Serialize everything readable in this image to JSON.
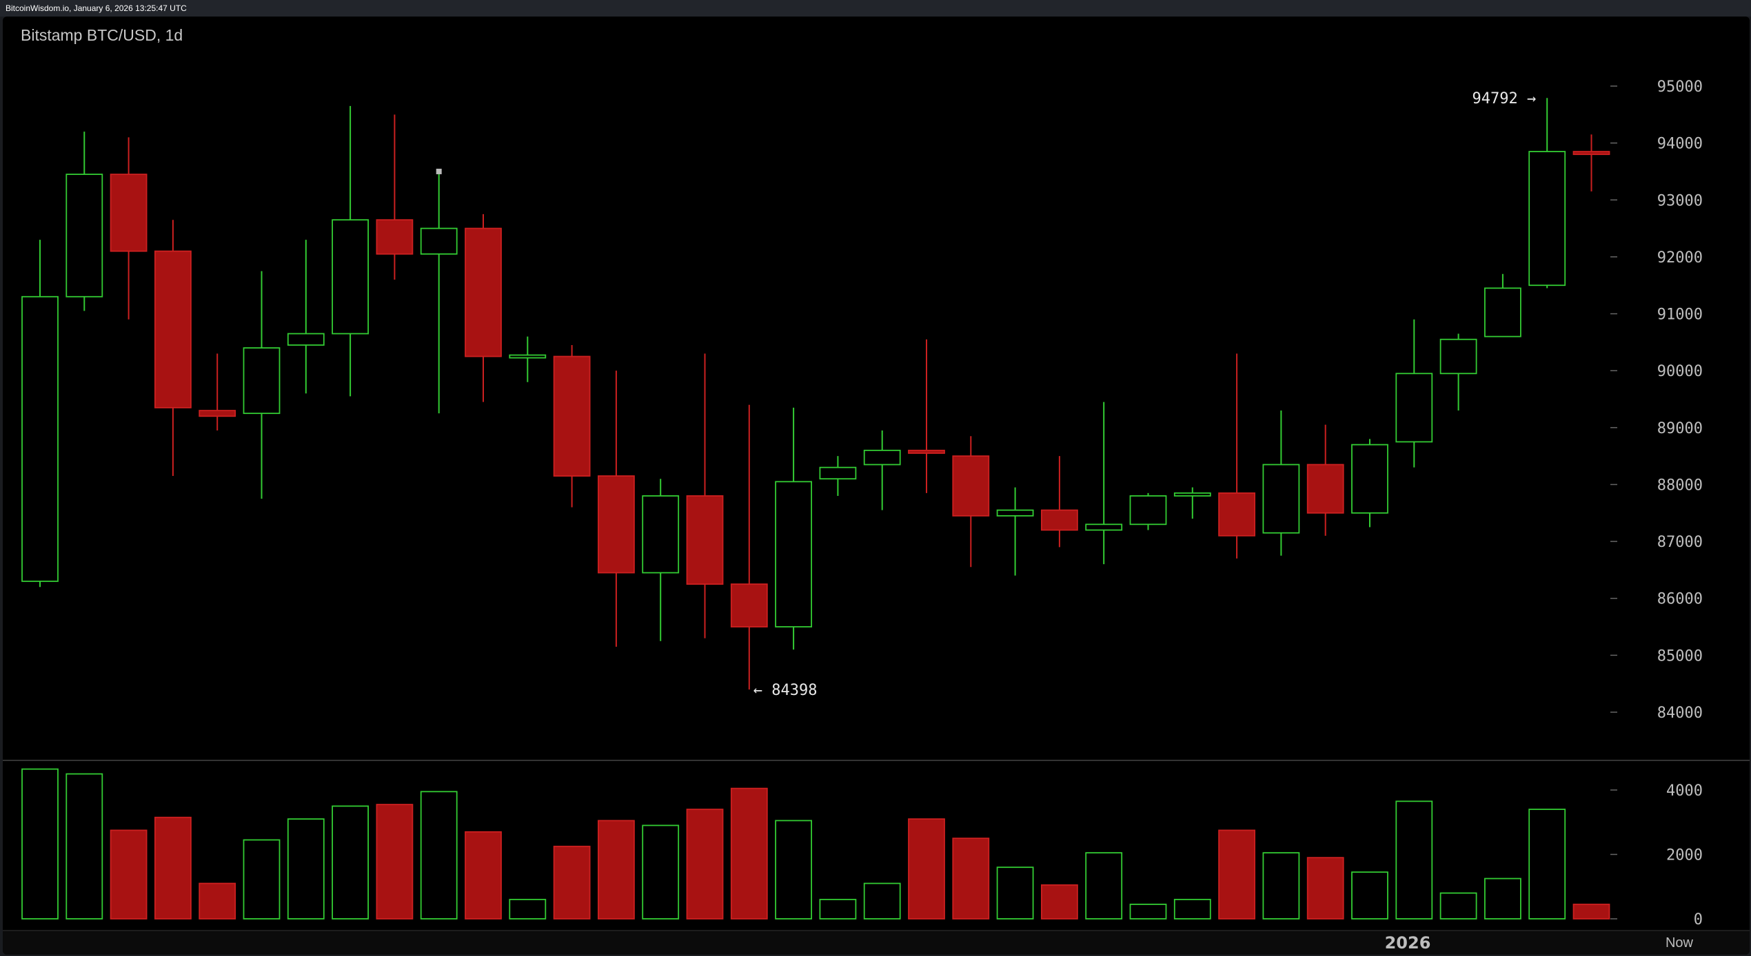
{
  "header": {
    "source_text": "BitcoinWisdom.io, January 6, 2026 13:25:47 UTC"
  },
  "chart": {
    "title": "Bitstamp BTC/USD, 1d"
  },
  "colors": {
    "up": "#33cc33",
    "down": "#cc2020",
    "down_fill": "#a81212",
    "text": "#bfbfbf"
  },
  "chart_data": [
    {
      "type": "candlestick",
      "title": "Bitstamp BTC/USD, 1d",
      "ylim": [
        83500,
        95500
      ],
      "y_ticks": [
        "84000",
        "85000",
        "86000",
        "87000",
        "88000",
        "89000",
        "90000",
        "91000",
        "92000",
        "93000",
        "94000",
        "95000"
      ],
      "annotations": {
        "high_label": "94792 →",
        "low_label": "← 84398"
      },
      "candles": [
        {
          "o": 86300,
          "h": 92300,
          "l": 86200,
          "c": 91300
        },
        {
          "o": 91300,
          "h": 94200,
          "l": 91050,
          "c": 93450
        },
        {
          "o": 93450,
          "h": 94100,
          "l": 90900,
          "c": 92100
        },
        {
          "o": 92100,
          "h": 92650,
          "l": 88150,
          "c": 89350
        },
        {
          "o": 89300,
          "h": 90300,
          "l": 88950,
          "c": 89200
        },
        {
          "o": 89250,
          "h": 91750,
          "l": 87750,
          "c": 90400
        },
        {
          "o": 90450,
          "h": 92300,
          "l": 89600,
          "c": 90650
        },
        {
          "o": 90650,
          "h": 94650,
          "l": 89550,
          "c": 92650
        },
        {
          "o": 92650,
          "h": 94500,
          "l": 91600,
          "c": 92050
        },
        {
          "o": 92050,
          "h": 93500,
          "l": 89250,
          "c": 92500
        },
        {
          "o": 92500,
          "h": 92750,
          "l": 89450,
          "c": 90250
        },
        {
          "o": 90250,
          "h": 90600,
          "l": 89800,
          "c": 90250
        },
        {
          "o": 90250,
          "h": 90450,
          "l": 87600,
          "c": 88150
        },
        {
          "o": 88150,
          "h": 90000,
          "l": 85150,
          "c": 86450
        },
        {
          "o": 86450,
          "h": 88100,
          "l": 85250,
          "c": 87800
        },
        {
          "o": 87800,
          "h": 90300,
          "l": 85300,
          "c": 86250
        },
        {
          "o": 86250,
          "h": 89400,
          "l": 84398,
          "c": 85500
        },
        {
          "o": 85500,
          "h": 89350,
          "l": 85100,
          "c": 88050
        },
        {
          "o": 88100,
          "h": 88500,
          "l": 87800,
          "c": 88300
        },
        {
          "o": 88350,
          "h": 88950,
          "l": 87550,
          "c": 88600
        },
        {
          "o": 88600,
          "h": 90550,
          "l": 87850,
          "c": 88550
        },
        {
          "o": 88500,
          "h": 88850,
          "l": 86550,
          "c": 87450
        },
        {
          "o": 87450,
          "h": 87950,
          "l": 86400,
          "c": 87550
        },
        {
          "o": 87550,
          "h": 88500,
          "l": 86900,
          "c": 87200
        },
        {
          "o": 87200,
          "h": 89450,
          "l": 86600,
          "c": 87300
        },
        {
          "o": 87300,
          "h": 87850,
          "l": 87200,
          "c": 87800
        },
        {
          "o": 87800,
          "h": 87950,
          "l": 87400,
          "c": 87850
        },
        {
          "o": 87850,
          "h": 90300,
          "l": 86700,
          "c": 87100
        },
        {
          "o": 87150,
          "h": 89300,
          "l": 86750,
          "c": 88350
        },
        {
          "o": 88350,
          "h": 89050,
          "l": 87100,
          "c": 87500
        },
        {
          "o": 87500,
          "h": 88800,
          "l": 87250,
          "c": 88700
        },
        {
          "o": 88750,
          "h": 90900,
          "l": 88300,
          "c": 89950
        },
        {
          "o": 89950,
          "h": 90650,
          "l": 89300,
          "c": 90550
        },
        {
          "o": 90600,
          "h": 91700,
          "l": 90600,
          "c": 91450
        },
        {
          "o": 91500,
          "h": 94792,
          "l": 91450,
          "c": 93850
        },
        {
          "o": 93850,
          "h": 94150,
          "l": 93150,
          "c": 93800
        }
      ]
    },
    {
      "type": "bar",
      "title": "Volume",
      "ylim": [
        0,
        4800
      ],
      "y_ticks": [
        "0",
        "2000",
        "4000"
      ],
      "values": [
        4650,
        4500,
        2750,
        3150,
        1100,
        2450,
        3100,
        3500,
        3550,
        3950,
        2700,
        600,
        2250,
        3050,
        2900,
        3400,
        4050,
        3050,
        600,
        1100,
        3100,
        2500,
        1600,
        1050,
        2050,
        450,
        600,
        2750,
        2050,
        1900,
        1450,
        3650,
        800,
        1250,
        3400,
        450
      ]
    }
  ],
  "x_axis": {
    "year_label": "2026",
    "now_label": "Now"
  }
}
